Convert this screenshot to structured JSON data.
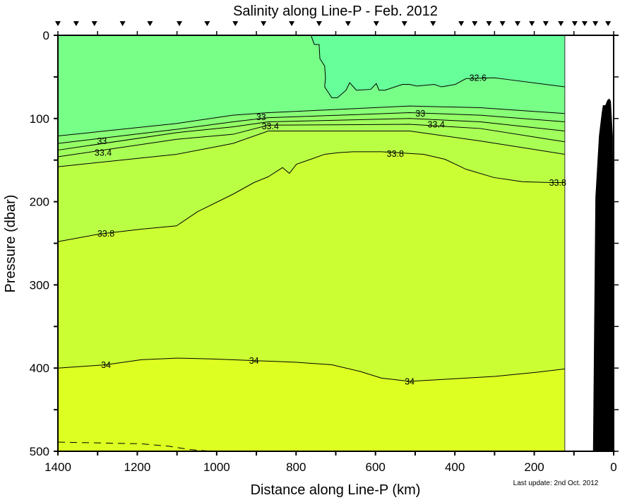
{
  "chart_data": {
    "type": "heatmap",
    "subtype": "filled-contour",
    "title": "Salinity along Line-P - Feb. 2012",
    "xlabel": "Distance along Line-P (km)",
    "ylabel": "Pressure (dbar)",
    "footnote": "Last update: 2nd Oct. 2012",
    "xlim": [
      1400,
      0
    ],
    "ylim": [
      500,
      0
    ],
    "x_reversed": true,
    "y_reversed": true,
    "x_ticks": [
      1400,
      1200,
      1000,
      800,
      600,
      400,
      200,
      0
    ],
    "x_tick_labels": [
      "1400",
      "1200",
      "1000",
      "800",
      "600",
      "400",
      "200",
      "0"
    ],
    "y_ticks": [
      0,
      100,
      200,
      300,
      400,
      500
    ],
    "y_tick_labels": [
      "0",
      "100",
      "200",
      "300",
      "400",
      "500"
    ],
    "grid": false,
    "data_extent_km": [
      1400,
      123
    ],
    "station_markers_km": [
      1400,
      1354,
      1308,
      1237,
      1168,
      1094,
      1024,
      953,
      882,
      811,
      742,
      669,
      598,
      527,
      455,
      384,
      350,
      314,
      280,
      242,
      206,
      171,
      133,
      98,
      73,
      46,
      14
    ],
    "fill_colors": {
      "below_32.6": "#66FF99",
      "32.6_32.8": "#77FF88",
      "32.8_33.0": "#88FF77",
      "33.0_33.2": "#94FF66",
      "33.2_33.4": "#A0FF5C",
      "33.4_33.6": "#AAFF55",
      "33.6_33.8": "#BBFF44",
      "33.8_34.0": "#CCFF33",
      "above_34.0": "#DDFF22"
    },
    "contours": [
      {
        "level": 32.6,
        "km": [
          761,
          754,
          742,
          740,
          728,
          726,
          728,
          710,
          696,
          674,
          665,
          648,
          612,
          598,
          591,
          576,
          532,
          514,
          496,
          452,
          434,
          399,
          372,
          301,
          269,
          123
        ],
        "dbar": [
          2,
          11,
          11,
          28,
          37,
          51,
          62,
          75,
          75,
          66,
          57,
          66,
          65,
          58,
          66,
          66,
          59,
          59,
          61,
          59,
          62,
          59,
          52,
          51,
          53,
          62
        ]
      },
      {
        "level": 32.8,
        "km": [
          1400,
          1101,
          959,
          870,
          514,
          336,
          123
        ],
        "dbar": [
          121,
          106,
          96,
          93,
          85,
          87,
          94
        ]
      },
      {
        "level": 33.0,
        "km": [
          1400,
          1101,
          959,
          870,
          514,
          336,
          123
        ],
        "dbar": [
          130,
          113,
          104,
          99,
          93,
          96,
          104
        ]
      },
      {
        "level": 33.2,
        "km": [
          1400,
          1101,
          959,
          870,
          514,
          336,
          123
        ],
        "dbar": [
          138,
          117,
          110,
          104,
          100,
          104,
          115
        ]
      },
      {
        "level": 33.4,
        "km": [
          1400,
          1101,
          959,
          870,
          514,
          336,
          123
        ],
        "dbar": [
          146,
          125,
          119,
          108,
          107,
          112,
          128
        ]
      },
      {
        "level": 33.6,
        "km": [
          1400,
          1101,
          959,
          870,
          514,
          336,
          123
        ],
        "dbar": [
          158,
          143,
          130,
          115,
          115,
          127,
          143
        ]
      },
      {
        "level": 33.8,
        "km": [
          1400,
          1297,
          1190,
          1101,
          1048,
          959,
          906,
          870,
          834,
          817,
          799,
          763,
          728,
          692,
          656,
          585,
          479,
          425,
          372,
          301,
          229,
          158,
          123
        ],
        "dbar": [
          248,
          239,
          233,
          229,
          212,
          191,
          177,
          170,
          159,
          166,
          155,
          149,
          143,
          141,
          140,
          140,
          143,
          149,
          161,
          171,
          176,
          177,
          177
        ]
      },
      {
        "level": 34.0,
        "km": [
          1400,
          1279,
          1190,
          1101,
          1012,
          906,
          799,
          710,
          639,
          585,
          514,
          407,
          300,
          194,
          123
        ],
        "dbar": [
          400,
          396,
          390,
          388,
          389,
          391,
          393,
          396,
          404,
          412,
          416,
          413,
          410,
          405,
          401
        ]
      }
    ],
    "dashed_contour": {
      "km": [
        1400,
        1190,
        1120,
        1066,
        1012
      ],
      "dbar": [
        489,
        491,
        494,
        498,
        500
      ]
    },
    "contour_labels": [
      {
        "text": "32.6",
        "km": 342,
        "dbar": 51
      },
      {
        "text": "33",
        "km": 1289,
        "dbar": 127
      },
      {
        "text": "33.4",
        "km": 1286,
        "dbar": 141
      },
      {
        "text": "33",
        "km": 888,
        "dbar": 98
      },
      {
        "text": "33.4",
        "km": 865,
        "dbar": 109
      },
      {
        "text": "33",
        "km": 487,
        "dbar": 94
      },
      {
        "text": "33.4",
        "km": 447,
        "dbar": 107
      },
      {
        "text": "33.8",
        "km": 1279,
        "dbar": 238
      },
      {
        "text": "33.8",
        "km": 550,
        "dbar": 142
      },
      {
        "text": "33.8",
        "km": 141,
        "dbar": 177
      },
      {
        "text": "34",
        "km": 1279,
        "dbar": 396
      },
      {
        "text": "34",
        "km": 906,
        "dbar": 391
      },
      {
        "text": "34",
        "km": 514,
        "dbar": 416
      }
    ],
    "bathymetry": {
      "color": "#000000",
      "km": [
        52,
        46,
        37,
        30,
        27,
        21,
        16,
        11,
        7,
        2,
        0
      ],
      "dbar": [
        500,
        195,
        121,
        93,
        84,
        84,
        78,
        76,
        79,
        121,
        500
      ]
    }
  }
}
